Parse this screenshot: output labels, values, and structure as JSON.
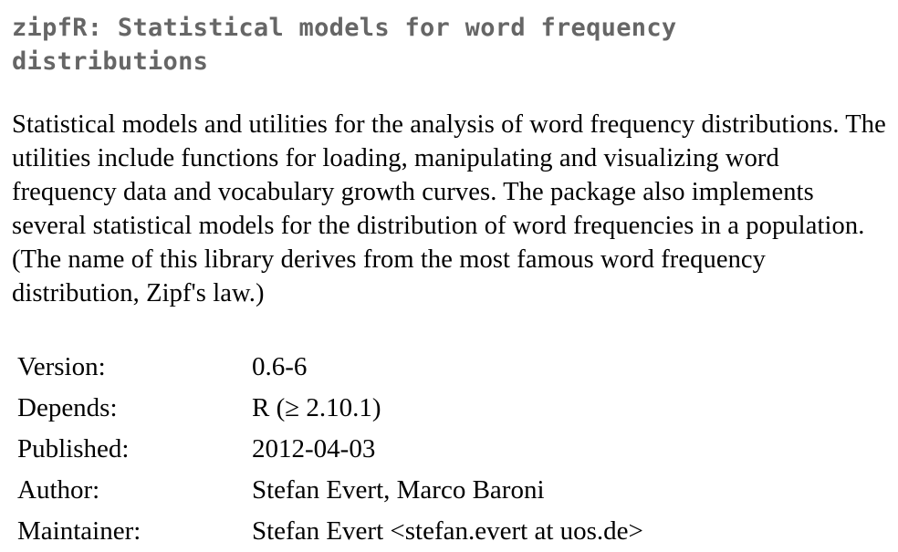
{
  "package": {
    "title": "zipfR: Statistical models for word frequency distributions",
    "description": "Statistical models and utilities for the analysis of word frequency distributions. The utilities include functions for loading, manipulating and visualizing word frequency data and vocabulary growth curves. The package also implements several statistical models for the distribution of word frequencies in a population. (The name of this library derives from the most famous word frequency distribution, Zipf's law.)"
  },
  "meta": {
    "rows": [
      {
        "label": "Version:",
        "value": "0.6-6"
      },
      {
        "label": "Depends:",
        "value": "R (≥ 2.10.1)"
      },
      {
        "label": "Published:",
        "value": "2012-04-03"
      },
      {
        "label": "Author:",
        "value": "Stefan Evert, Marco Baroni"
      },
      {
        "label": "Maintainer:",
        "value": "Stefan Evert <stefan.evert at uos.de>"
      }
    ]
  }
}
